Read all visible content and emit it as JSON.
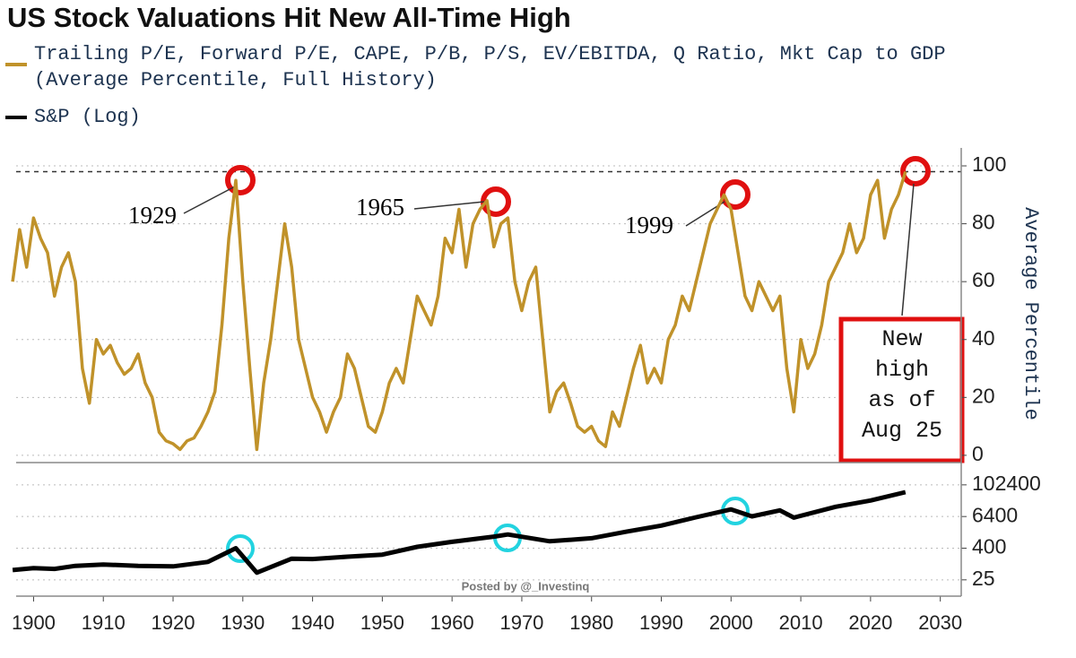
{
  "chart_data": [
    {
      "type": "line",
      "title": "US Stock Valuations Hit New All-Time High",
      "xlim": [
        1897.5,
        2033
      ],
      "ylim": [
        -2.2,
        106.2
      ],
      "yticks": [
        0,
        20,
        40,
        60,
        80,
        100
      ],
      "ylabel": "Average Percentile",
      "grid": true,
      "reference_line": 98,
      "x": [
        1897,
        1898,
        1899,
        1900,
        1901,
        1902,
        1903,
        1904,
        1905,
        1906,
        1907,
        1908,
        1909,
        1910,
        1911,
        1912,
        1913,
        1914,
        1915,
        1916,
        1917,
        1918,
        1919,
        1920,
        1921,
        1922,
        1923,
        1924,
        1925,
        1926,
        1927,
        1928,
        1929,
        1930,
        1931,
        1932,
        1933,
        1934,
        1935,
        1936,
        1937,
        1938,
        1939,
        1940,
        1941,
        1942,
        1943,
        1944,
        1945,
        1946,
        1947,
        1948,
        1949,
        1950,
        1951,
        1952,
        1953,
        1954,
        1955,
        1956,
        1957,
        1958,
        1959,
        1960,
        1961,
        1962,
        1963,
        1964,
        1965,
        1966,
        1967,
        1968,
        1969,
        1970,
        1971,
        1972,
        1973,
        1974,
        1975,
        1976,
        1977,
        1978,
        1979,
        1980,
        1981,
        1982,
        1983,
        1984,
        1985,
        1986,
        1987,
        1988,
        1989,
        1990,
        1991,
        1992,
        1993,
        1994,
        1995,
        1996,
        1997,
        1998,
        1999,
        2000,
        2001,
        2002,
        2003,
        2004,
        2005,
        2006,
        2007,
        2008,
        2009,
        2010,
        2011,
        2012,
        2013,
        2014,
        2015,
        2016,
        2017,
        2018,
        2019,
        2020,
        2021,
        2022,
        2023,
        2024,
        2025
      ],
      "series": [
        {
          "name": "Trailing P/E, Forward P/E, CAPE, P/B, P/S, EV/EBITDA, Q Ratio, Mkt Cap to GDP\n(Average Percentile, Full History)",
          "color": "#c0922a",
          "values": [
            60,
            78,
            65,
            82,
            75,
            70,
            55,
            65,
            70,
            60,
            30,
            18,
            40,
            35,
            38,
            32,
            28,
            30,
            35,
            25,
            20,
            8,
            5,
            4,
            2,
            5,
            6,
            10,
            15,
            22,
            45,
            75,
            95,
            60,
            30,
            2,
            25,
            40,
            60,
            80,
            65,
            40,
            30,
            20,
            15,
            8,
            15,
            20,
            35,
            30,
            20,
            10,
            8,
            15,
            25,
            30,
            25,
            40,
            55,
            50,
            45,
            55,
            75,
            70,
            85,
            65,
            80,
            85,
            88,
            72,
            80,
            82,
            60,
            50,
            60,
            65,
            40,
            15,
            22,
            25,
            18,
            10,
            8,
            10,
            5,
            3,
            15,
            10,
            20,
            30,
            38,
            25,
            30,
            25,
            40,
            45,
            55,
            50,
            60,
            70,
            80,
            85,
            90,
            85,
            70,
            55,
            50,
            60,
            55,
            50,
            55,
            30,
            15,
            40,
            30,
            35,
            45,
            60,
            65,
            70,
            80,
            70,
            75,
            90,
            95,
            75,
            85,
            90,
            98
          ]
        }
      ],
      "annotations": [
        "1929",
        "1965",
        "1999",
        "New\nhigh\nas of\nAug 25"
      ]
    },
    {
      "type": "line",
      "log_scale": true,
      "xlim": [
        1897.5,
        2033
      ],
      "xticks": [
        1900,
        1910,
        1920,
        1930,
        1940,
        1950,
        1960,
        1970,
        1980,
        1990,
        2000,
        2010,
        2020,
        2030
      ],
      "ylim": [
        6,
        450000
      ],
      "yticks": [
        25,
        400,
        6400,
        102400
      ],
      "grid": true,
      "x": [
        1897,
        1900,
        1903,
        1906,
        1910,
        1915,
        1920,
        1925,
        1929,
        1932,
        1937,
        1940,
        1945,
        1950,
        1955,
        1960,
        1966,
        1968,
        1974,
        1980,
        1985,
        1990,
        1995,
        2000,
        2003,
        2007,
        2009,
        2015,
        2020,
        2025
      ],
      "series": [
        {
          "name": "S&P (Log)",
          "color": "#000000",
          "values": [
            59,
            70,
            65,
            85,
            96,
            85,
            81,
            120,
            400,
            47,
            160,
            155,
            190,
            228,
            450,
            697,
            1100,
            1325,
            730,
            955,
            1700,
            2900,
            6000,
            12000,
            6500,
            11000,
            5800,
            15000,
            26000,
            54000
          ]
        }
      ],
      "annotations": [
        "Posted by @_Investinq"
      ]
    }
  ]
}
